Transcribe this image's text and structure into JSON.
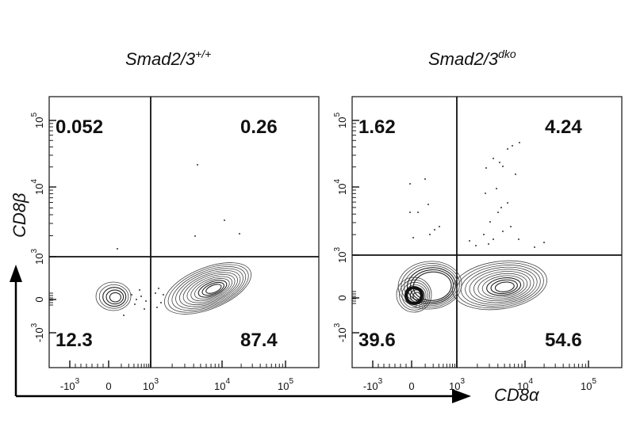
{
  "chart_data": {
    "type": "scatter",
    "subtype": "flow-cytometry contour plot",
    "xlabel": "CD8α",
    "ylabel": "CD8β",
    "x_ticks": [
      {
        "base": "-10",
        "exp": "3"
      },
      {
        "base": "0",
        "exp": ""
      },
      {
        "base": "10",
        "exp": "3"
      },
      {
        "base": "10",
        "exp": "4"
      },
      {
        "base": "10",
        "exp": "5"
      }
    ],
    "y_ticks": [
      {
        "base": "-10",
        "exp": "3"
      },
      {
        "base": "0",
        "exp": ""
      },
      {
        "base": "10",
        "exp": "3"
      },
      {
        "base": "10",
        "exp": "4"
      },
      {
        "base": "10",
        "exp": "5"
      }
    ],
    "panels": [
      {
        "title_main": "Smad2/3",
        "title_sup": "+/+",
        "quadrants": {
          "upper_left": "0.052",
          "upper_right": "0.26",
          "lower_left": "12.3",
          "lower_right": "87.4"
        }
      },
      {
        "title_main": "Smad2/3",
        "title_sup": "dko",
        "quadrants": {
          "upper_left": "1.62",
          "upper_right": "4.24",
          "lower_left": "39.6",
          "lower_right": "54.6"
        }
      }
    ]
  }
}
